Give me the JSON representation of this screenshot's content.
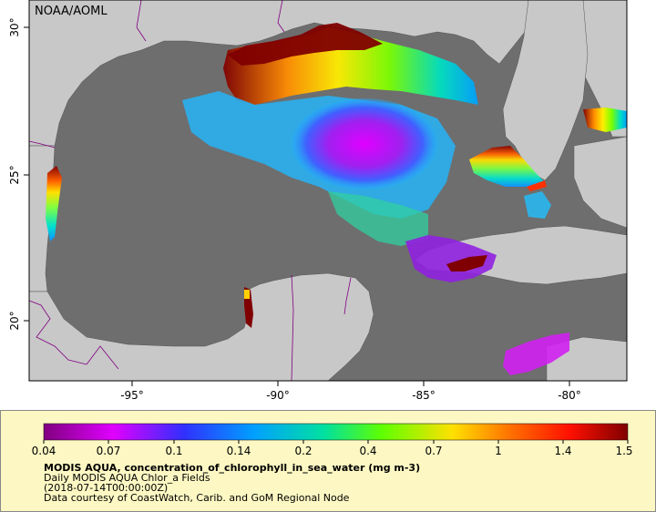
{
  "map": {
    "agency_label": "NOAA/AOML",
    "lon_ticks": [
      "-95°",
      "-90°",
      "-85°",
      "-80°"
    ],
    "lat_ticks": [
      "30°",
      "25°",
      "20°"
    ],
    "colors": {
      "ocean": "#6e6e6e",
      "land": "#c8c8c8",
      "border": "#800080"
    }
  },
  "legend": {
    "colorbar_ticks": [
      "0.04",
      "0.07",
      "0.1",
      "0.14",
      "0.2",
      "0.4",
      "0.7",
      "1",
      "1.4",
      "1.5"
    ],
    "title": "MODIS AQUA, concentration_of_chlorophyll_in_sea_water (mg m-3)",
    "subtitle": "Daily MODIS AQUA Chlor_a Fields",
    "date": "(2018-07-14T00:00:00Z)",
    "credit": "Data courtesy of CoastWatch, Carib. and GoM Regional Node"
  }
}
